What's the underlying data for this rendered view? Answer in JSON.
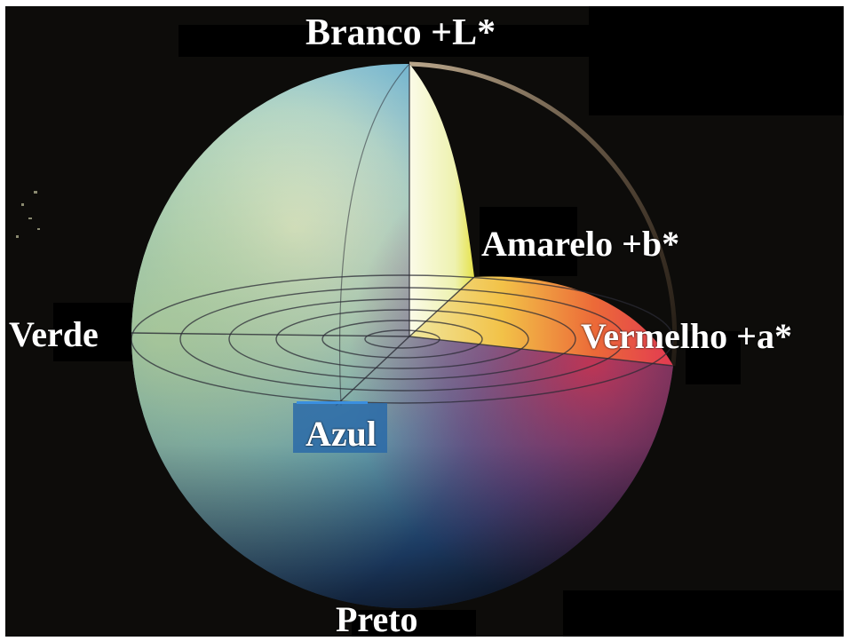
{
  "labels": {
    "white": "Branco +L*",
    "yellow": "Amarelo +b*",
    "green": "Verde",
    "red": "Vermelho +a*",
    "blue": "Azul",
    "black": "Preto"
  },
  "colors": {
    "background": "#0d0c0a",
    "label_text": "#ffffff",
    "blue_label_bg": "#2a6aa8",
    "blue_accent_bar": "#3a8fe0"
  }
}
